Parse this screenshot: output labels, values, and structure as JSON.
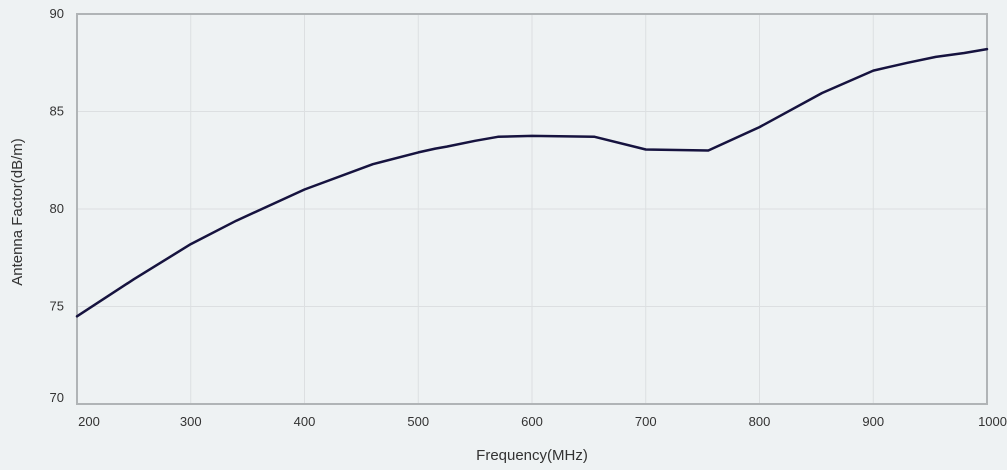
{
  "chart_data": {
    "type": "line",
    "title": "",
    "xlabel": "Frequency(MHz)",
    "ylabel": "Antenna Factor(dB/m)",
    "xlim": [
      200,
      1000
    ],
    "ylim": [
      70,
      90
    ],
    "xticks": [
      200,
      300,
      400,
      500,
      600,
      700,
      800,
      900,
      1000
    ],
    "yticks": [
      70,
      75,
      80,
      85,
      90
    ],
    "grid": true,
    "series": [
      {
        "color": "#16133f",
        "x": [
          200,
          250,
          300,
          340,
          400,
          460,
          500,
          515,
          525,
          550,
          570,
          600,
          655,
          700,
          755,
          800,
          855,
          900,
          930,
          955,
          980,
          1000
        ],
        "y": [
          74.5,
          76.4,
          78.2,
          79.4,
          81.0,
          82.3,
          82.9,
          83.1,
          83.2,
          83.5,
          83.7,
          83.75,
          83.7,
          83.05,
          83.0,
          84.2,
          85.95,
          87.1,
          87.5,
          87.8,
          88.0,
          88.2
        ]
      }
    ]
  }
}
